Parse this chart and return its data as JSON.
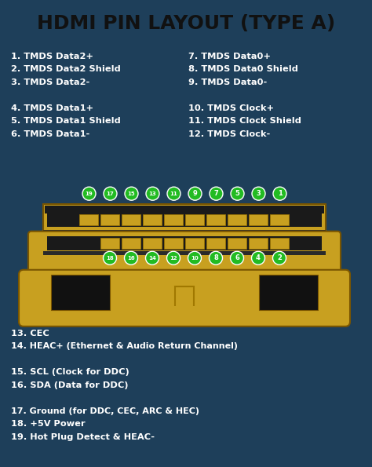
{
  "title": "HDMI PIN LAYOUT (TYPE A)",
  "title_bg": "#c8cdd4",
  "title_color": "#111111",
  "body_bg": "#1e3f5a",
  "text_color": "#ffffff",
  "left_col": [
    "1. TMDS Data2+",
    "2. TMDS Data2 Shield",
    "3. TMDS Data2-",
    "",
    "4. TMDS Data1+",
    "5. TMDS Data1 Shield",
    "6. TMDS Data1-"
  ],
  "right_col": [
    "7. TMDS Data0+",
    "8. TMDS Data0 Shield",
    "9. TMDS Data0-",
    "",
    "10. TMDS Clock+",
    "11. TMDS Clock Shield",
    "12. TMDS Clock-"
  ],
  "bottom_lines": [
    "13. CEC",
    "14. HEAC+ (Ethernet & Audio Return Channel)",
    "",
    "15. SCL (Clock for DDC)",
    "16. SDA (Data for DDC)",
    "",
    "17. Ground (for DDC, CEC, ARC & HEC)",
    "18. +5V Power",
    "19. Hot Plug Detect & HEAC-"
  ],
  "pin_circle_color": "#22bb22",
  "pin_text_color": "#ffffff",
  "top_pins": [
    "19",
    "17",
    "15",
    "13",
    "11",
    "9",
    "7",
    "5",
    "3",
    "1"
  ],
  "bottom_pins": [
    "18",
    "16",
    "14",
    "12",
    "10",
    "8",
    "6",
    "4",
    "2"
  ],
  "gold": "#c8a020",
  "dark_gold": "#7a5500",
  "mid_gold": "#a07800"
}
